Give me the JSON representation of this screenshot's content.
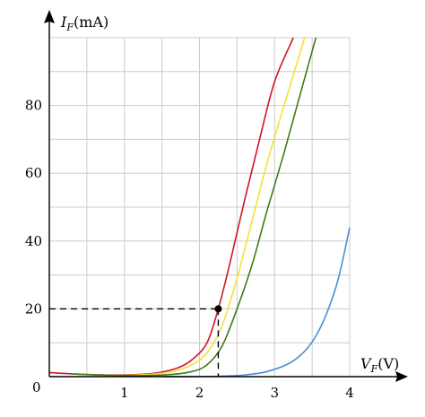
{
  "chart_data": {
    "type": "line",
    "x_label": {
      "symbol": "V",
      "subscript": "F",
      "unit": "(V)"
    },
    "y_label": {
      "symbol": "I",
      "subscript": "F",
      "unit": "(mA)"
    },
    "xlim": [
      0,
      4
    ],
    "ylim": [
      0,
      100
    ],
    "x_ticks": [
      "1",
      "2",
      "3",
      "4"
    ],
    "y_ticks": [
      "20",
      "40",
      "60",
      "80"
    ],
    "origin_label": "0",
    "grid": true,
    "series": [
      {
        "color": "#d0152a",
        "x": [
          0,
          0.5,
          1.0,
          1.4,
          1.7,
          1.9,
          2.1,
          2.25,
          2.4,
          2.6,
          2.8,
          3.0,
          3.25
        ],
        "y": [
          1.2,
          0.6,
          0.5,
          1.0,
          2.5,
          5,
          10,
          20,
          33,
          52,
          70,
          87,
          100
        ]
      },
      {
        "color": "#f2e23a",
        "x": [
          0.3,
          0.8,
          1.2,
          1.6,
          1.9,
          2.1,
          2.3,
          2.5,
          2.7,
          2.9,
          3.1,
          3.4
        ],
        "y": [
          0.8,
          0.4,
          0.5,
          1.3,
          3.5,
          7,
          15,
          29,
          46,
          63,
          78,
          100
        ]
      },
      {
        "color": "#3f7a1c",
        "x": [
          0.3,
          0.8,
          1.2,
          1.6,
          1.9,
          2.1,
          2.3,
          2.5,
          2.7,
          2.9,
          3.1,
          3.3,
          3.55
        ],
        "y": [
          0.8,
          0.4,
          0.3,
          0.6,
          1.5,
          3.5,
          9,
          20,
          33,
          49,
          64,
          80,
          100
        ]
      },
      {
        "color": "#4a8fd6",
        "x": [
          1.5,
          2.2,
          2.6,
          2.9,
          3.2,
          3.4,
          3.55,
          3.7,
          3.85,
          4.0
        ],
        "y": [
          0,
          0.1,
          0.5,
          1.5,
          4,
          7.5,
          12,
          19,
          29,
          44
        ]
      }
    ],
    "marked_point": {
      "x": 2.25,
      "y": 20
    }
  }
}
